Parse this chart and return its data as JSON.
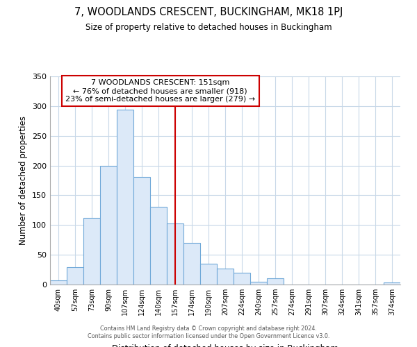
{
  "title": "7, WOODLANDS CRESCENT, BUCKINGHAM, MK18 1PJ",
  "subtitle": "Size of property relative to detached houses in Buckingham",
  "xlabel": "Distribution of detached houses by size in Buckingham",
  "ylabel": "Number of detached properties",
  "bar_labels": [
    "40sqm",
    "57sqm",
    "73sqm",
    "90sqm",
    "107sqm",
    "124sqm",
    "140sqm",
    "157sqm",
    "174sqm",
    "190sqm",
    "207sqm",
    "224sqm",
    "240sqm",
    "257sqm",
    "274sqm",
    "291sqm",
    "307sqm",
    "324sqm",
    "341sqm",
    "357sqm",
    "374sqm"
  ],
  "bar_heights": [
    7,
    29,
    112,
    199,
    294,
    181,
    131,
    103,
    70,
    35,
    27,
    20,
    5,
    10,
    0,
    0,
    0,
    0,
    0,
    0,
    3
  ],
  "bar_color": "#dce9f8",
  "bar_edge_color": "#6fa8d8",
  "vline_x_index": 7,
  "vline_color": "#cc0000",
  "annotation_title": "7 WOODLANDS CRESCENT: 151sqm",
  "annotation_line1": "← 76% of detached houses are smaller (918)",
  "annotation_line2": "23% of semi-detached houses are larger (279) →",
  "annotation_box_edge": "#cc0000",
  "annotation_box_face": "#ffffff",
  "ylim": [
    0,
    350
  ],
  "yticks": [
    0,
    50,
    100,
    150,
    200,
    250,
    300,
    350
  ],
  "footer1": "Contains HM Land Registry data © Crown copyright and database right 2024.",
  "footer2": "Contains public sector information licensed under the Open Government Licence v3.0.",
  "bg_color": "#ffffff",
  "grid_color": "#c8d8e8"
}
